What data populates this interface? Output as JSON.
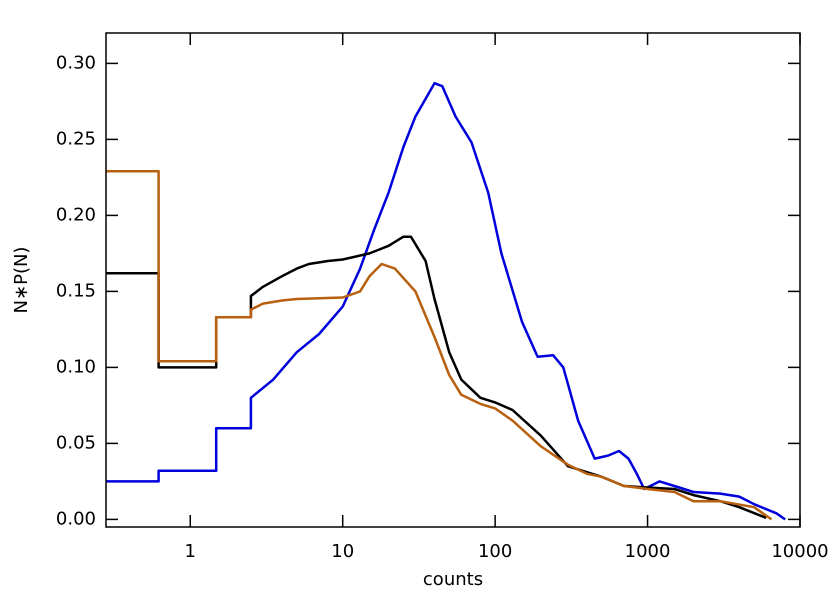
{
  "chart_data": {
    "type": "line",
    "x_label": "counts",
    "y_label": "N∗P(N)",
    "xscale": "log",
    "xlim": [
      0.28,
      10000
    ],
    "ylim": [
      -0.005,
      0.32
    ],
    "xticks": [
      1,
      10,
      100,
      1000,
      10000
    ],
    "yticks": [
      {
        "value": 0,
        "label": "0.00"
      },
      {
        "value": 0.05,
        "label": "0.05"
      },
      {
        "value": 0.1,
        "label": "0.10"
      },
      {
        "value": 0.15,
        "label": "0.15"
      },
      {
        "value": 0.2,
        "label": "0.20"
      },
      {
        "value": 0.25,
        "label": "0.25"
      },
      {
        "value": 0.3,
        "label": "0.30"
      }
    ],
    "series": [
      {
        "color": "#0000dd",
        "x": [
          0.28,
          0.62,
          0.62,
          1.48,
          1.48,
          2.5,
          2.5,
          3.5,
          5,
          7,
          10,
          13,
          16,
          20,
          25,
          30,
          40,
          45,
          55,
          70,
          90,
          110,
          150,
          190,
          240,
          280,
          350,
          450,
          550,
          650,
          750,
          850,
          950,
          1200,
          1500,
          2000,
          3000,
          4000,
          5000,
          7000,
          8000
        ],
        "values": [
          0.025,
          0.025,
          0.032,
          0.032,
          0.06,
          0.06,
          0.08,
          0.092,
          0.11,
          0.122,
          0.14,
          0.165,
          0.19,
          0.215,
          0.245,
          0.265,
          0.287,
          0.285,
          0.265,
          0.248,
          0.215,
          0.175,
          0.13,
          0.107,
          0.108,
          0.1,
          0.065,
          0.04,
          0.042,
          0.045,
          0.04,
          0.03,
          0.02,
          0.025,
          0.022,
          0.018,
          0.017,
          0.015,
          0.01,
          0.004,
          0
        ]
      },
      {
        "color": "#000000",
        "x": [
          0.28,
          0.62,
          0.62,
          1.48,
          1.48,
          2.5,
          2.5,
          3,
          4,
          5,
          6,
          8,
          10,
          15,
          20,
          25,
          28,
          35,
          40,
          50,
          60,
          80,
          100,
          130,
          200,
          300,
          500,
          700,
          1000,
          1500,
          2000,
          3000,
          4000,
          6000
        ],
        "values": [
          0.162,
          0.162,
          0.1,
          0.1,
          0.133,
          0.133,
          0.147,
          0.153,
          0.16,
          0.165,
          0.168,
          0.17,
          0.171,
          0.175,
          0.18,
          0.186,
          0.186,
          0.17,
          0.145,
          0.11,
          0.092,
          0.08,
          0.077,
          0.072,
          0.055,
          0.035,
          0.028,
          0.022,
          0.021,
          0.02,
          0.016,
          0.012,
          0.008,
          0.001
        ]
      },
      {
        "color": "#b8600f",
        "x": [
          0.28,
          0.62,
          0.62,
          1.48,
          1.48,
          2.5,
          2.5,
          3,
          4,
          5,
          10,
          13,
          15,
          18,
          22,
          30,
          40,
          50,
          60,
          80,
          100,
          130,
          200,
          300,
          400,
          500,
          700,
          1000,
          1500,
          2000,
          3000,
          5000,
          6500
        ],
        "values": [
          0.229,
          0.229,
          0.104,
          0.104,
          0.133,
          0.133,
          0.138,
          0.142,
          0.144,
          0.145,
          0.146,
          0.15,
          0.16,
          0.168,
          0.165,
          0.15,
          0.12,
          0.095,
          0.082,
          0.076,
          0.073,
          0.065,
          0.048,
          0.036,
          0.03,
          0.028,
          0.022,
          0.02,
          0.018,
          0.012,
          0.012,
          0.008,
          0
        ]
      }
    ]
  }
}
